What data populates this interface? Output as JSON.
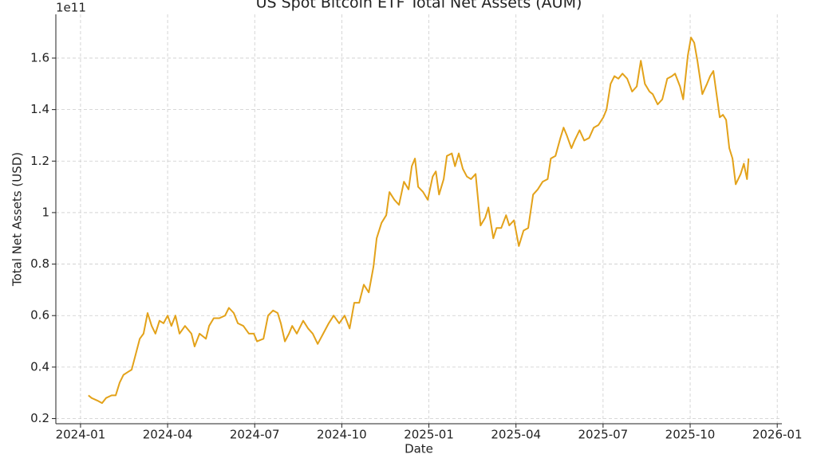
{
  "chart_data": {
    "type": "line",
    "title": "US Spot Bitcoin ETF Total Net Assets (AUM)",
    "x_label": "Date",
    "y_label": "Total Net Assets (USD)",
    "y_offset_label": "1e11",
    "color": "#e3a21a",
    "grid": true,
    "x": [
      0.27,
      0.38,
      0.58,
      0.74,
      0.88,
      1.07,
      1.21,
      1.35,
      1.48,
      1.62,
      1.76,
      1.9,
      2.04,
      2.17,
      2.31,
      2.45,
      2.58,
      2.72,
      2.86,
      3.0,
      3.13,
      3.27,
      3.41,
      3.6,
      3.82,
      3.93,
      4.1,
      4.32,
      4.43,
      4.59,
      4.78,
      4.98,
      5.11,
      5.28,
      5.42,
      5.61,
      5.8,
      5.97,
      6.08,
      6.3,
      6.46,
      6.63,
      6.79,
      6.9,
      7.04,
      7.18,
      7.29,
      7.45,
      7.67,
      7.84,
      8.0,
      8.17,
      8.36,
      8.55,
      8.72,
      8.91,
      9.1,
      9.27,
      9.43,
      9.6,
      9.76,
      9.93,
      10.09,
      10.2,
      10.37,
      10.53,
      10.64,
      10.81,
      10.97,
      11.14,
      11.3,
      11.41,
      11.52,
      11.63,
      11.8,
      11.96,
      12.13,
      12.24,
      12.35,
      12.51,
      12.62,
      12.79,
      12.9,
      13.03,
      13.17,
      13.31,
      13.45,
      13.61,
      13.78,
      13.94,
      14.05,
      14.22,
      14.33,
      14.49,
      14.66,
      14.77,
      14.93,
      15.1,
      15.26,
      15.42,
      15.59,
      15.75,
      15.92,
      16.09,
      16.2,
      16.36,
      16.53,
      16.64,
      16.75,
      16.91,
      17.02,
      17.19,
      17.35,
      17.52,
      17.68,
      17.84,
      18.01,
      18.12,
      18.26,
      18.39,
      18.53,
      18.67,
      18.83,
      19.0,
      19.16,
      19.3,
      19.44,
      19.6,
      19.71,
      19.88,
      20.04,
      20.21,
      20.37,
      20.48,
      20.65,
      20.76,
      20.92,
      21.03,
      21.14,
      21.25,
      21.42,
      21.58,
      21.69,
      21.8,
      21.91,
      22.02,
      22.13,
      22.24,
      22.35,
      22.46,
      22.57,
      22.74,
      22.85,
      22.96,
      23.01
    ],
    "values": [
      0.29,
      0.28,
      0.27,
      0.26,
      0.28,
      0.29,
      0.29,
      0.34,
      0.37,
      0.38,
      0.39,
      0.45,
      0.51,
      0.53,
      0.61,
      0.56,
      0.53,
      0.58,
      0.57,
      0.6,
      0.56,
      0.6,
      0.53,
      0.56,
      0.53,
      0.48,
      0.53,
      0.51,
      0.56,
      0.59,
      0.59,
      0.6,
      0.63,
      0.61,
      0.57,
      0.56,
      0.53,
      0.53,
      0.5,
      0.51,
      0.6,
      0.62,
      0.61,
      0.57,
      0.5,
      0.53,
      0.56,
      0.53,
      0.58,
      0.55,
      0.53,
      0.49,
      0.53,
      0.57,
      0.6,
      0.57,
      0.6,
      0.55,
      0.65,
      0.65,
      0.72,
      0.69,
      0.79,
      0.9,
      0.96,
      0.99,
      1.08,
      1.05,
      1.03,
      1.12,
      1.09,
      1.18,
      1.21,
      1.1,
      1.08,
      1.05,
      1.14,
      1.16,
      1.07,
      1.13,
      1.22,
      1.23,
      1.18,
      1.23,
      1.17,
      1.14,
      1.13,
      1.15,
      0.95,
      0.98,
      1.02,
      0.9,
      0.94,
      0.94,
      0.99,
      0.95,
      0.97,
      0.87,
      0.93,
      0.94,
      1.07,
      1.09,
      1.12,
      1.13,
      1.21,
      1.22,
      1.29,
      1.33,
      1.3,
      1.25,
      1.28,
      1.32,
      1.28,
      1.29,
      1.33,
      1.34,
      1.37,
      1.4,
      1.5,
      1.53,
      1.52,
      1.54,
      1.52,
      1.47,
      1.49,
      1.59,
      1.5,
      1.47,
      1.46,
      1.42,
      1.44,
      1.52,
      1.53,
      1.54,
      1.49,
      1.44,
      1.61,
      1.68,
      1.66,
      1.59,
      1.46,
      1.5,
      1.53,
      1.55,
      1.46,
      1.37,
      1.38,
      1.36,
      1.25,
      1.21,
      1.11,
      1.15,
      1.19,
      1.13,
      1.21
    ],
    "xlim": [
      -0.85,
      24.16
    ],
    "xticks": [
      {
        "value": 0,
        "label": "2024-01"
      },
      {
        "value": 3,
        "label": "2024-04"
      },
      {
        "value": 6,
        "label": "2024-07"
      },
      {
        "value": 9,
        "label": "2024-10"
      },
      {
        "value": 12,
        "label": "2025-01"
      },
      {
        "value": 15,
        "label": "2025-04"
      },
      {
        "value": 18,
        "label": "2025-07"
      },
      {
        "value": 21,
        "label": "2025-10"
      },
      {
        "value": 24,
        "label": "2026-01"
      }
    ],
    "ylim": [
      0.18,
      1.77
    ],
    "yticks": [
      0.2,
      0.4,
      0.6,
      0.8,
      1.0,
      1.2,
      1.4,
      1.6
    ]
  }
}
